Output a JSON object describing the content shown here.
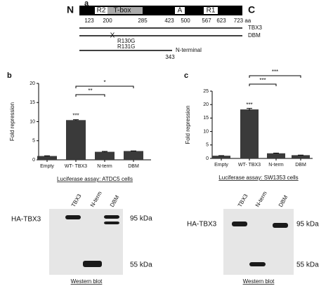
{
  "panel_a": {
    "label": "a",
    "n_term": "N",
    "c_term": "C",
    "domains": [
      {
        "label": "R2"
      },
      {
        "label": "T-box"
      },
      {
        "label": "A"
      },
      {
        "label": "R1"
      }
    ],
    "positions": [
      "123",
      "200",
      "285",
      "423",
      "500",
      "567",
      "623",
      "723 aa"
    ],
    "constructs": [
      {
        "label": "TBX3"
      },
      {
        "label": "DBM",
        "mutation_mark": "X",
        "mutations": [
          "R130G",
          "R131G"
        ]
      },
      {
        "label": "N-terminal",
        "end": "343"
      }
    ]
  },
  "chart_data": [
    {
      "type": "bar",
      "label": "b",
      "y_label": "Fold repression",
      "x_label": "Luciferase assay: ATDC5 cells",
      "categories": [
        "Empty",
        "WT- TBX3",
        "N-term",
        "DBM"
      ],
      "values": [
        1.0,
        10.4,
        2.1,
        2.3
      ],
      "errors": [
        0.05,
        0.1,
        0.1,
        0.05
      ],
      "color": "#3a3a3a",
      "ylim": [
        0,
        20
      ],
      "yticks": [
        0,
        5,
        10,
        15,
        20
      ],
      "significance": [
        "***",
        "**",
        "*"
      ]
    },
    {
      "type": "bar",
      "label": "c",
      "y_label": "Fold repression",
      "x_label": "Luciferase assay: SW1353 cells",
      "categories": [
        "Empty",
        "WT- TBX3",
        "N-term",
        "DBM"
      ],
      "values": [
        1.0,
        18.2,
        1.9,
        1.2
      ],
      "errors": [
        0.05,
        0.4,
        0.1,
        0.05
      ],
      "color": "#3a3a3a",
      "ylim": [
        0,
        25
      ],
      "yticks": [
        0,
        5,
        10,
        15,
        20,
        25
      ],
      "significance": [
        "***",
        "***",
        "***"
      ]
    }
  ],
  "blots": [
    {
      "protein": "HA-TBX3",
      "lanes": [
        "TBX3",
        "N-term",
        "DBM"
      ],
      "markers": [
        "95 kDa",
        "55 kDa"
      ],
      "caption": "Western blot"
    },
    {
      "protein": "HA-TBX3",
      "lanes": [
        "TBX3",
        "N-term",
        "DBM"
      ],
      "markers": [
        "95 kDa",
        "55 kDa"
      ],
      "caption": "Western blot"
    }
  ]
}
